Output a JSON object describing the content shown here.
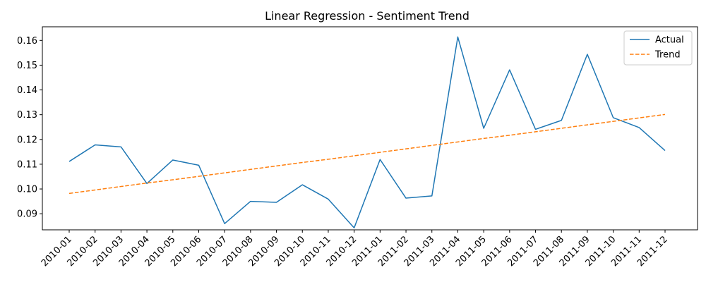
{
  "chart_data": {
    "type": "line",
    "title": "Linear Regression - Sentiment Trend",
    "xlabel": "",
    "ylabel": "",
    "categories": [
      "2010-01",
      "2010-02",
      "2010-03",
      "2010-04",
      "2010-05",
      "2010-06",
      "2010-07",
      "2010-08",
      "2010-09",
      "2010-10",
      "2010-11",
      "2010-12",
      "2011-01",
      "2011-02",
      "2011-03",
      "2011-04",
      "2011-05",
      "2011-06",
      "2011-07",
      "2011-08",
      "2011-09",
      "2011-10",
      "2011-11",
      "2011-12"
    ],
    "ylim": [
      0.0835,
      0.1655
    ],
    "yticks": [
      0.09,
      0.1,
      0.11,
      0.12,
      0.13,
      0.14,
      0.15,
      0.16
    ],
    "ytick_labels": [
      "0.09",
      "0.10",
      "0.11",
      "0.12",
      "0.13",
      "0.14",
      "0.15",
      "0.16"
    ],
    "grid": false,
    "legend": "top-right",
    "series": [
      {
        "name": "Actual",
        "style": "solid",
        "color": "#1f77b4",
        "values": [
          0.1111,
          0.1178,
          0.117,
          0.1022,
          0.1117,
          0.1096,
          0.086,
          0.095,
          0.0946,
          0.1017,
          0.0959,
          0.0843,
          0.1119,
          0.0963,
          0.0972,
          0.1614,
          0.1245,
          0.1481,
          0.1241,
          0.1277,
          0.1544,
          0.1288,
          0.1248,
          0.1155
        ]
      },
      {
        "name": "Trend",
        "style": "dashed",
        "color": "#ff7f0e",
        "values": [
          0.0982,
          0.0996,
          0.101,
          0.1024,
          0.1037,
          0.1051,
          0.1065,
          0.1079,
          0.1093,
          0.1107,
          0.112,
          0.1134,
          0.1148,
          0.1162,
          0.1176,
          0.119,
          0.1204,
          0.1217,
          0.1231,
          0.1245,
          0.1259,
          0.1273,
          0.1287,
          0.1301
        ]
      }
    ]
  }
}
